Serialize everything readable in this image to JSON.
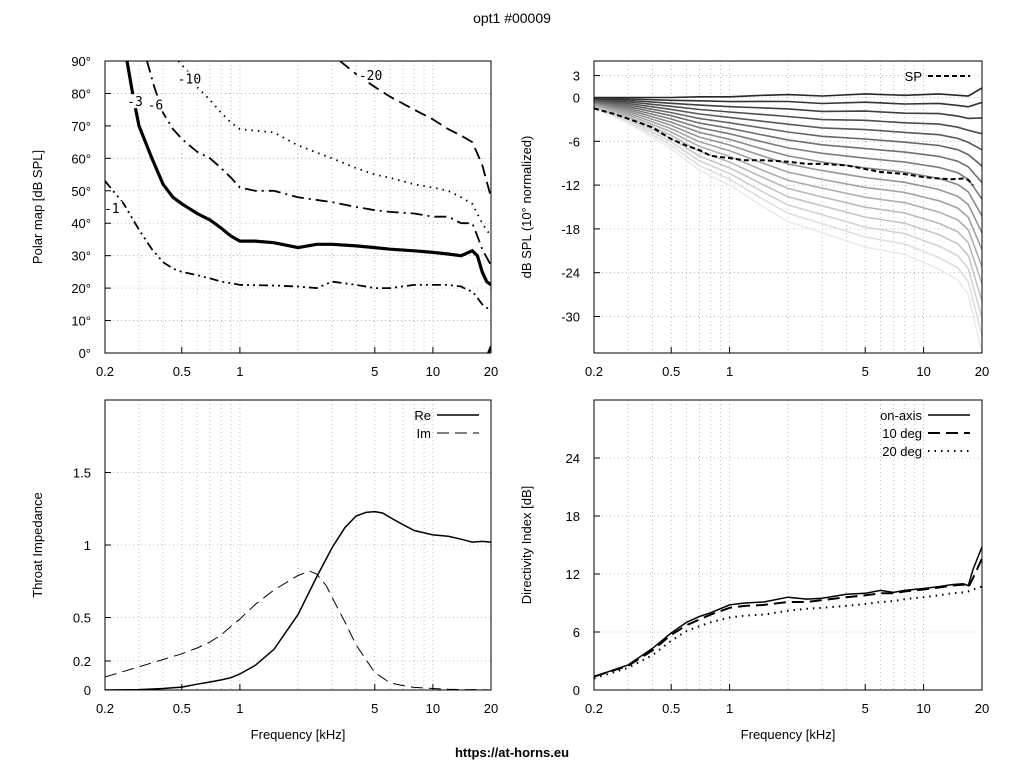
{
  "page": {
    "title": "opt1 #00009",
    "footer": "https://at-horns.eu"
  },
  "colors": {
    "line": "#000000",
    "grid": "#999999"
  },
  "chart_data": [
    {
      "id": "polar",
      "type": "line",
      "ylabel": "Polar map [dB SPL]",
      "xlabel": "",
      "xscale": "log",
      "xlim": [
        0.2,
        20
      ],
      "ylim": [
        0,
        90
      ],
      "xticks": [
        0.2,
        0.5,
        1,
        5,
        10,
        20
      ],
      "xticklabels": [
        "0.2",
        "0.5",
        "1",
        "5",
        "10",
        "20"
      ],
      "yticks": [
        0,
        10,
        20,
        30,
        40,
        50,
        60,
        70,
        80,
        90
      ],
      "yticklabels": [
        "0°",
        "10°",
        "20°",
        "30°",
        "40°",
        "50°",
        "60°",
        "70°",
        "80°",
        "90°"
      ],
      "grid": true,
      "series": [
        {
          "label": "-1",
          "style": "dashdotdot",
          "width": 1.8,
          "points": [
            [
              0.2,
              53
            ],
            [
              0.25,
              46
            ],
            [
              0.3,
              38
            ],
            [
              0.35,
              32
            ],
            [
              0.4,
              28
            ],
            [
              0.45,
              26
            ],
            [
              0.5,
              25
            ],
            [
              0.6,
              24
            ],
            [
              0.7,
              23
            ],
            [
              0.8,
              22
            ],
            [
              0.9,
              21.5
            ],
            [
              1,
              21
            ],
            [
              1.5,
              20.8
            ],
            [
              2,
              20.5
            ],
            [
              2.5,
              20
            ],
            [
              3,
              22
            ],
            [
              4,
              21
            ],
            [
              5,
              20
            ],
            [
              6,
              20
            ],
            [
              8,
              21
            ],
            [
              10,
              21
            ],
            [
              12,
              21
            ],
            [
              14,
              20.5
            ],
            [
              15,
              19.5
            ],
            [
              16,
              19
            ],
            [
              17,
              17
            ],
            [
              18,
              15
            ],
            [
              20,
              13
            ]
          ],
          "label_at": [
            0.22,
            44
          ]
        },
        {
          "label": "-3",
          "style": "solid",
          "width": 3.2,
          "points": [
            [
              0.26,
              90
            ],
            [
              0.28,
              79
            ],
            [
              0.3,
              70
            ],
            [
              0.35,
              60
            ],
            [
              0.4,
              52
            ],
            [
              0.45,
              48
            ],
            [
              0.5,
              46
            ],
            [
              0.6,
              43
            ],
            [
              0.7,
              41
            ],
            [
              0.8,
              38.5
            ],
            [
              0.9,
              36
            ],
            [
              1,
              34.5
            ],
            [
              1.2,
              34.5
            ],
            [
              1.5,
              34
            ],
            [
              2,
              32.5
            ],
            [
              2.5,
              33.5
            ],
            [
              3,
              33.5
            ],
            [
              4,
              33
            ],
            [
              5,
              32.5
            ],
            [
              6,
              32
            ],
            [
              8,
              31.5
            ],
            [
              10,
              31
            ],
            [
              12,
              30.5
            ],
            [
              14,
              30
            ],
            [
              16,
              31.5
            ],
            [
              17,
              30
            ],
            [
              18,
              25
            ],
            [
              19,
              22
            ],
            [
              20,
              21
            ]
          ],
          "label_at": [
            0.29,
            77
          ]
        },
        {
          "label": "-6",
          "style": "dashdot",
          "width": 1.8,
          "points": [
            [
              0.33,
              90
            ],
            [
              0.36,
              82
            ],
            [
              0.4,
              74
            ],
            [
              0.45,
              69
            ],
            [
              0.5,
              66
            ],
            [
              0.6,
              62
            ],
            [
              0.7,
              60
            ],
            [
              0.8,
              57
            ],
            [
              0.9,
              54
            ],
            [
              1,
              51
            ],
            [
              1.2,
              50
            ],
            [
              1.5,
              50
            ],
            [
              2,
              48
            ],
            [
              3,
              46.5
            ],
            [
              4,
              45
            ],
            [
              5,
              44
            ],
            [
              6,
              43.5
            ],
            [
              8,
              43
            ],
            [
              10,
              42
            ],
            [
              12,
              42
            ],
            [
              14,
              40
            ],
            [
              16,
              40
            ],
            [
              17,
              36
            ],
            [
              18,
              32
            ],
            [
              20,
              27
            ]
          ],
          "label_at": [
            0.37,
            76
          ]
        },
        {
          "label": "-10",
          "style": "dotted",
          "width": 1.8,
          "points": [
            [
              0.48,
              90
            ],
            [
              0.55,
              86
            ],
            [
              0.6,
              82
            ],
            [
              0.7,
              78
            ],
            [
              0.8,
              74
            ],
            [
              0.9,
              71
            ],
            [
              1,
              69
            ],
            [
              1.5,
              68
            ],
            [
              2,
              64
            ],
            [
              3,
              60
            ],
            [
              4,
              57
            ],
            [
              5,
              55
            ],
            [
              6,
              54
            ],
            [
              8,
              52
            ],
            [
              10,
              51
            ],
            [
              12,
              50
            ],
            [
              14,
              48
            ],
            [
              16,
              46
            ],
            [
              18,
              40
            ],
            [
              20,
              36
            ]
          ],
          "label_at": [
            0.53,
            84
          ]
        },
        {
          "label": "-20",
          "style": "dashed",
          "width": 1.8,
          "points": [
            [
              3.3,
              90
            ],
            [
              4,
              86
            ],
            [
              5,
              82
            ],
            [
              6,
              79
            ],
            [
              8,
              75
            ],
            [
              10,
              72
            ],
            [
              12,
              69
            ],
            [
              14,
              67
            ],
            [
              16,
              65
            ],
            [
              18,
              58
            ],
            [
              20,
              48
            ]
          ],
          "label_at": [
            4.6,
            85
          ]
        },
        {
          "label": "",
          "style": "solid",
          "width": 2.5,
          "points": [
            [
              19.4,
              0
            ],
            [
              20,
              2
            ]
          ]
        }
      ]
    },
    {
      "id": "spl",
      "type": "line",
      "ylabel": "dB SPL (10° normalized)",
      "xlabel": "",
      "xscale": "log",
      "xlim": [
        0.2,
        20
      ],
      "ylim": [
        -35,
        5
      ],
      "xticks": [
        0.2,
        0.5,
        1,
        5,
        10,
        20
      ],
      "xticklabels": [
        "0.2",
        "0.5",
        "1",
        "5",
        "10",
        "20"
      ],
      "yticks": [
        3,
        0,
        -6,
        -12,
        -18,
        -24,
        -30
      ],
      "yticklabels": [
        "3",
        "0",
        "-6",
        "-12",
        "-18",
        "-24",
        "-30"
      ],
      "grid": true,
      "legend": {
        "position": "top-right",
        "entries": [
          "SP"
        ]
      },
      "fan_x": [
        0.2,
        0.3,
        0.5,
        0.7,
        1,
        1.5,
        2,
        3,
        5,
        8,
        12,
        15,
        17,
        20
      ],
      "fan_top": [
        0,
        0,
        0,
        0.1,
        0.1,
        0.3,
        0.4,
        0.2,
        0.5,
        0.3,
        0.5,
        0.3,
        0.2,
        1.3
      ],
      "fan_bottom": [
        -1.5,
        -3.5,
        -7,
        -10,
        -12,
        -15,
        -17,
        -18.5,
        -20.5,
        -21.5,
        -23.5,
        -25,
        -27,
        -35
      ],
      "fan_count": 17,
      "sp": {
        "name": "SP",
        "x": [
          0.2,
          0.25,
          0.3,
          0.4,
          0.5,
          0.6,
          0.7,
          0.8,
          1,
          1.2,
          1.5,
          2,
          2.5,
          3,
          4,
          5,
          6,
          8,
          10,
          12,
          14,
          16,
          17,
          18
        ],
        "y": [
          -1.5,
          -2.2,
          -2.9,
          -4.1,
          -5.7,
          -6.6,
          -7.2,
          -8.0,
          -8.3,
          -8.6,
          -8.6,
          -8.8,
          -9.1,
          -9.1,
          -9.3,
          -9.8,
          -10.2,
          -10.5,
          -10.9,
          -11.1,
          -11.2,
          -11.1,
          -11.3,
          -12.0
        ]
      }
    },
    {
      "id": "impedance",
      "type": "line",
      "ylabel": "Throat Impedance",
      "xlabel": "Frequency [kHz]",
      "xscale": "log",
      "xlim": [
        0.2,
        20
      ],
      "ylim": [
        0,
        2
      ],
      "xticks": [
        0.2,
        0.5,
        1,
        5,
        10,
        20
      ],
      "xticklabels": [
        "0.2",
        "0.5",
        "1",
        "5",
        "10",
        "20"
      ],
      "yticks": [
        0,
        0.2,
        0.5,
        1,
        1.5
      ],
      "yticklabels": [
        "0",
        "0.2",
        "0.5",
        "1",
        "1.5"
      ],
      "grid": true,
      "legend": {
        "position": "top-right",
        "entries": [
          "Re",
          "Im"
        ]
      },
      "series": [
        {
          "name": "Re",
          "style": "solid",
          "width": 1.5,
          "x": [
            0.2,
            0.3,
            0.4,
            0.5,
            0.6,
            0.7,
            0.8,
            0.9,
            1,
            1.2,
            1.5,
            2,
            2.5,
            3,
            3.5,
            4,
            4.5,
            5,
            5.5,
            6,
            7,
            8,
            10,
            12,
            14,
            16,
            18,
            20
          ],
          "y": [
            0,
            0.003,
            0.01,
            0.02,
            0.04,
            0.055,
            0.07,
            0.085,
            0.11,
            0.17,
            0.28,
            0.52,
            0.78,
            0.98,
            1.12,
            1.2,
            1.225,
            1.23,
            1.22,
            1.19,
            1.14,
            1.1,
            1.07,
            1.06,
            1.04,
            1.02,
            1.025,
            1.02
          ]
        },
        {
          "name": "Im",
          "style": "dashed",
          "width": 1,
          "x": [
            0.2,
            0.3,
            0.4,
            0.5,
            0.6,
            0.7,
            0.8,
            0.9,
            1,
            1.2,
            1.5,
            2,
            2.3,
            2.5,
            2.8,
            3,
            3.5,
            4,
            5,
            6,
            7,
            8,
            10,
            12,
            15,
            18,
            20
          ],
          "y": [
            0.09,
            0.16,
            0.21,
            0.25,
            0.29,
            0.33,
            0.38,
            0.44,
            0.49,
            0.59,
            0.69,
            0.79,
            0.82,
            0.8,
            0.72,
            0.64,
            0.47,
            0.31,
            0.12,
            0.05,
            0.03,
            0.018,
            0.01,
            0.005,
            0.003,
            0.002,
            0.0
          ]
        }
      ]
    },
    {
      "id": "di",
      "type": "line",
      "ylabel": "Directivity Index [dB]",
      "xlabel": "Frequency [kHz]",
      "xscale": "log",
      "xlim": [
        0.2,
        20
      ],
      "ylim": [
        0,
        30
      ],
      "xticks": [
        0.2,
        0.5,
        1,
        5,
        10,
        20
      ],
      "xticklabels": [
        "0.2",
        "0.5",
        "1",
        "5",
        "10",
        "20"
      ],
      "yticks": [
        0,
        6,
        12,
        18,
        24
      ],
      "yticklabels": [
        "0",
        "6",
        "12",
        "18",
        "24"
      ],
      "grid": true,
      "legend": {
        "position": "top-right",
        "entries": [
          "on-axis",
          "10 deg",
          "20 deg"
        ]
      },
      "series": [
        {
          "name": "on-axis",
          "style": "solid",
          "width": 1.5,
          "x": [
            0.2,
            0.3,
            0.4,
            0.5,
            0.6,
            0.7,
            0.8,
            1,
            1.2,
            1.5,
            2,
            2.5,
            3,
            4,
            5,
            6,
            7,
            8,
            10,
            12,
            14,
            16,
            17,
            18,
            20
          ],
          "y": [
            1.4,
            2.6,
            4.3,
            5.9,
            7.0,
            7.6,
            8.0,
            8.8,
            9.0,
            9.1,
            9.6,
            9.4,
            9.5,
            9.9,
            10.0,
            10.3,
            10.1,
            10.3,
            10.5,
            10.7,
            10.9,
            11.0,
            10.8,
            12.5,
            14.8
          ]
        },
        {
          "name": "10 deg",
          "style": "dashed",
          "width": 2,
          "x": [
            0.2,
            0.3,
            0.4,
            0.5,
            0.6,
            0.7,
            0.8,
            1,
            1.2,
            1.5,
            2,
            2.5,
            3,
            4,
            5,
            6,
            7,
            8,
            10,
            12,
            14,
            16,
            17,
            18,
            20
          ],
          "y": [
            1.4,
            2.5,
            4.1,
            5.7,
            6.7,
            7.3,
            7.8,
            8.5,
            8.7,
            8.8,
            9.1,
            9.1,
            9.3,
            9.6,
            9.8,
            10.0,
            10.0,
            10.2,
            10.4,
            10.6,
            10.8,
            10.9,
            10.6,
            11.6,
            13.6
          ]
        },
        {
          "name": "20 deg",
          "style": "dotted",
          "width": 2,
          "x": [
            0.2,
            0.3,
            0.4,
            0.5,
            0.6,
            0.7,
            0.8,
            1,
            1.2,
            1.5,
            2,
            2.5,
            3,
            4,
            5,
            6,
            7,
            8,
            10,
            12,
            14,
            16,
            17,
            18,
            20
          ],
          "y": [
            1.2,
            2.3,
            3.6,
            5.1,
            6.1,
            6.6,
            7.0,
            7.5,
            7.7,
            7.8,
            8.2,
            8.4,
            8.5,
            8.7,
            8.9,
            9.1,
            9.2,
            9.4,
            9.6,
            9.8,
            10.0,
            10.1,
            10.2,
            10.4,
            10.7
          ]
        }
      ]
    }
  ]
}
